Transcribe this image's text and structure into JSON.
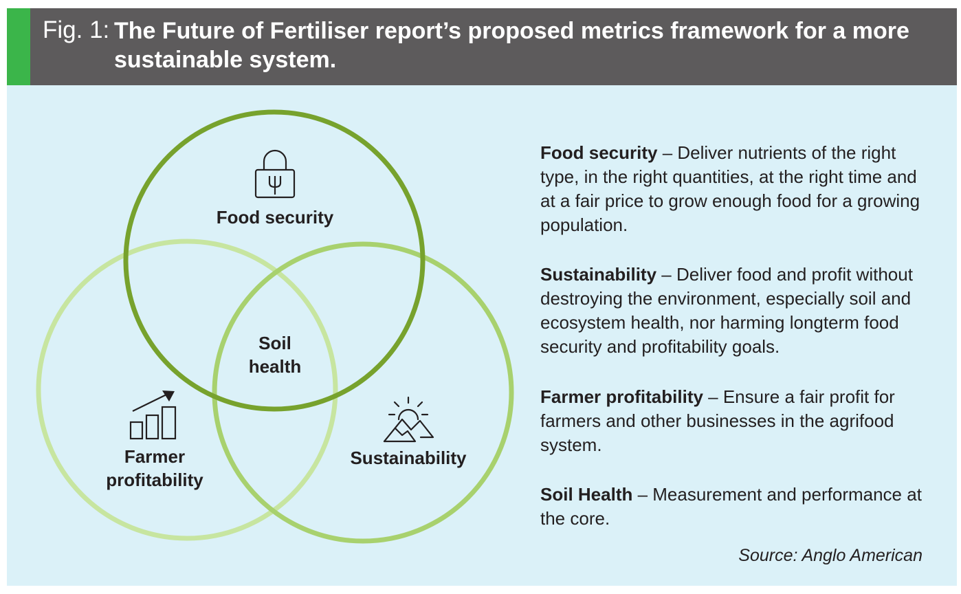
{
  "header": {
    "fig_label": "Fig. 1:",
    "title": "The Future of Fertiliser report’s proposed metrics framework for a more sustainable system."
  },
  "colors": {
    "header_bg": "#5d5b5c",
    "accent": "#3bb54a",
    "panel_bg": "#dbf1f8",
    "circle_food_security": "#77a22d",
    "circle_farmer_profitability": "#c7e5a0",
    "circle_sustainability": "#a8d16e"
  },
  "diagram": {
    "food_security_label": "Food security",
    "soil_health_line1": "Soil",
    "soil_health_line2": "health",
    "farmer_profitability_line1": "Farmer",
    "farmer_profitability_line2": "profitability",
    "sustainability_label": "Sustainability",
    "icons": [
      "lock-fork-icon",
      "growth-chart-icon",
      "sun-mountain-icon"
    ]
  },
  "descriptions": [
    {
      "heading": "Food security",
      "text": " – Deliver nutrients of the right type, in the right quantities, at the right time and at a fair price to grow enough food for a growing population."
    },
    {
      "heading": "Sustainability",
      "text": " – Deliver food and profit without destroying the environment, especially soil and ecosystem health, nor harming longterm food security and profitability goals."
    },
    {
      "heading": "Farmer profitability",
      "text": " – Ensure a fair profit for farmers and other businesses in the agrifood system."
    },
    {
      "heading": "Soil Health",
      "text": " – Measurement and performance at the core."
    }
  ],
  "source": "Source: Anglo American"
}
